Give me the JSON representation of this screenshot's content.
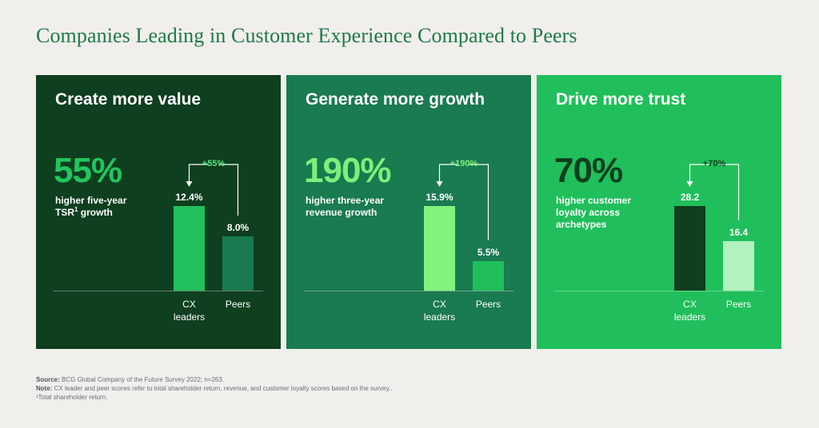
{
  "page_title": "Companies Leading in Customer Experience Compared to Peers",
  "colors": {
    "background": "#f1efec",
    "title": "#1e7a45",
    "panel_1": "#0e3f1f",
    "panel_2": "#1a7a50",
    "panel_3": "#20bf5b"
  },
  "panels": [
    {
      "heading": "Create more value",
      "big_stat": "55%",
      "big_stat_color": "#23c55e",
      "description": "higher five-year",
      "description_2": "TSR",
      "description_sup": "1",
      "description_3": " growth",
      "diff_label": "+55%",
      "diff_color": "#5be27f",
      "bracket_color": "#ffffff",
      "bars": [
        {
          "label_1": "CX",
          "label_2": "leaders",
          "value": 12.4,
          "value_label": "12.4%",
          "color": "#22c05a"
        },
        {
          "label_1": "Peers",
          "label_2": "",
          "value": 8.0,
          "value_label": "8.0%",
          "color": "#1a7a50"
        }
      ]
    },
    {
      "heading": "Generate more growth",
      "big_stat": "190%",
      "big_stat_color": "#7cf07a",
      "description": "higher three-year",
      "description_2": "revenue growth",
      "description_sup": "",
      "description_3": "",
      "diff_label": "+190%",
      "diff_color": "#7cf07a",
      "bracket_color": "#ffffff",
      "bars": [
        {
          "label_1": "CX",
          "label_2": "leaders",
          "value": 15.9,
          "value_label": "15.9%",
          "color": "#82f27c"
        },
        {
          "label_1": "Peers",
          "label_2": "",
          "value": 5.5,
          "value_label": "5.5%",
          "color": "#20bf5b"
        }
      ]
    },
    {
      "heading": "Drive more trust",
      "big_stat": "70%",
      "big_stat_color": "#0e3f1f",
      "description": "higher customer",
      "description_2": "loyalty across",
      "description_sup": "",
      "description_3": "archetypes",
      "diff_label": "+70%",
      "diff_color": "#0e3f1f",
      "bracket_color": "#ffffff",
      "bars": [
        {
          "label_1": "CX",
          "label_2": "leaders",
          "value": 28.2,
          "value_label": "28.2",
          "color": "#0e3f1f"
        },
        {
          "label_1": "Peers",
          "label_2": "",
          "value": 16.4,
          "value_label": "16.4",
          "color": "#b2f2bf"
        }
      ]
    }
  ],
  "chart_data": [
    {
      "type": "bar",
      "title": "Create more value",
      "categories": [
        "CX leaders",
        "Peers"
      ],
      "values": [
        12.4,
        8.0
      ],
      "unit": "%",
      "annotation": "+55%"
    },
    {
      "type": "bar",
      "title": "Generate more growth",
      "categories": [
        "CX leaders",
        "Peers"
      ],
      "values": [
        15.9,
        5.5
      ],
      "unit": "%",
      "annotation": "+190%"
    },
    {
      "type": "bar",
      "title": "Drive more trust",
      "categories": [
        "CX leaders",
        "Peers"
      ],
      "values": [
        28.2,
        16.4
      ],
      "annotation": "+70%"
    }
  ],
  "footnotes": {
    "source_label": "Source:",
    "source_text": " BCG Global Company of the Future Survey 2022; n=263.",
    "note_label": "Note:",
    "note_text": " CX leader and peer scores refer to total shareholder return, revenue, and customer loyalty scores based on the survey..",
    "footnote_1": "¹Total shareholder return."
  }
}
